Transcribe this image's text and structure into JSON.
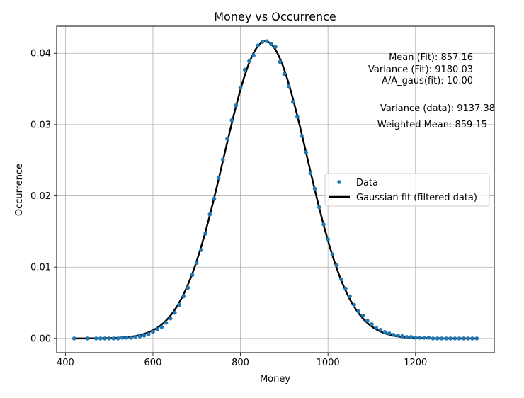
{
  "chart_data": {
    "type": "scatter",
    "title": "Money vs Occurrence",
    "xlabel": "Money",
    "ylabel": "Occurrence",
    "xlim": [
      380,
      1380
    ],
    "ylim": [
      -0.002,
      0.0438
    ],
    "xticks": [
      400,
      600,
      800,
      1000,
      1200
    ],
    "yticks": [
      0.0,
      0.01,
      0.02,
      0.03,
      0.04
    ],
    "xtick_labels": [
      "400",
      "600",
      "800",
      "1000",
      "1200"
    ],
    "ytick_labels": [
      "0.00",
      "0.01",
      "0.02",
      "0.03",
      "0.04"
    ],
    "grid": true,
    "legend": {
      "placement": "center-right",
      "entries": [
        "Data",
        "Gaussian fit (filtered data)"
      ]
    },
    "series": [
      {
        "name": "Data",
        "kind": "scatter",
        "color": "#1f77b4",
        "x": [
          420,
          450,
          470,
          480,
          490,
          500,
          510,
          520,
          530,
          540,
          550,
          560,
          570,
          580,
          590,
          600,
          610,
          620,
          630,
          640,
          650,
          660,
          670,
          680,
          690,
          700,
          710,
          720,
          730,
          740,
          750,
          760,
          770,
          780,
          790,
          800,
          810,
          820,
          830,
          840,
          850,
          860,
          870,
          880,
          890,
          900,
          910,
          920,
          930,
          940,
          950,
          960,
          970,
          980,
          990,
          1000,
          1010,
          1020,
          1030,
          1040,
          1050,
          1060,
          1070,
          1080,
          1090,
          1100,
          1110,
          1120,
          1130,
          1140,
          1150,
          1160,
          1170,
          1180,
          1190,
          1200,
          1210,
          1220,
          1230,
          1240,
          1250,
          1260,
          1270,
          1280,
          1290,
          1300,
          1310,
          1320,
          1330,
          1340
        ],
        "y": [
          0.0,
          0.0,
          0.0,
          0.0,
          0.0,
          0.0,
          0.0,
          0.0,
          0.0001,
          0.0001,
          0.0001,
          0.0002,
          0.0003,
          0.0004,
          0.0006,
          0.0009,
          0.0013,
          0.0016,
          0.0022,
          0.0028,
          0.0036,
          0.0047,
          0.0059,
          0.0071,
          0.0089,
          0.0106,
          0.0124,
          0.0147,
          0.0174,
          0.0196,
          0.0225,
          0.0251,
          0.028,
          0.0306,
          0.0327,
          0.0352,
          0.0377,
          0.0389,
          0.0397,
          0.0411,
          0.0416,
          0.0417,
          0.0413,
          0.0409,
          0.0388,
          0.0371,
          0.0354,
          0.0332,
          0.0311,
          0.0284,
          0.0261,
          0.0232,
          0.021,
          0.0184,
          0.016,
          0.0139,
          0.0118,
          0.0103,
          0.0083,
          0.007,
          0.0059,
          0.0047,
          0.0038,
          0.0032,
          0.0025,
          0.002,
          0.0015,
          0.0012,
          0.0009,
          0.0007,
          0.0005,
          0.0004,
          0.0003,
          0.0002,
          0.0002,
          0.0001,
          0.0001,
          0.0001,
          0.0001,
          0.0,
          0.0,
          0.0,
          0.0,
          0.0,
          0.0,
          0.0,
          0.0,
          0.0,
          0.0,
          0.0
        ]
      },
      {
        "name": "Gaussian fit (filtered data)",
        "kind": "line",
        "color": "#000000",
        "mean": 857.16,
        "variance": 9180.03,
        "amplitude": 10.0,
        "x_range": [
          420,
          1340
        ]
      }
    ],
    "annotations": [
      {
        "label": "Mean (Fit): 857.16"
      },
      {
        "label": "Variance (Fit): 9180.03"
      },
      {
        "label": "A/A_gaus(fit): 10.00"
      },
      {
        "label": "Variance (data): 9137.38"
      },
      {
        "label": "Weighted Mean: 859.15"
      }
    ]
  }
}
